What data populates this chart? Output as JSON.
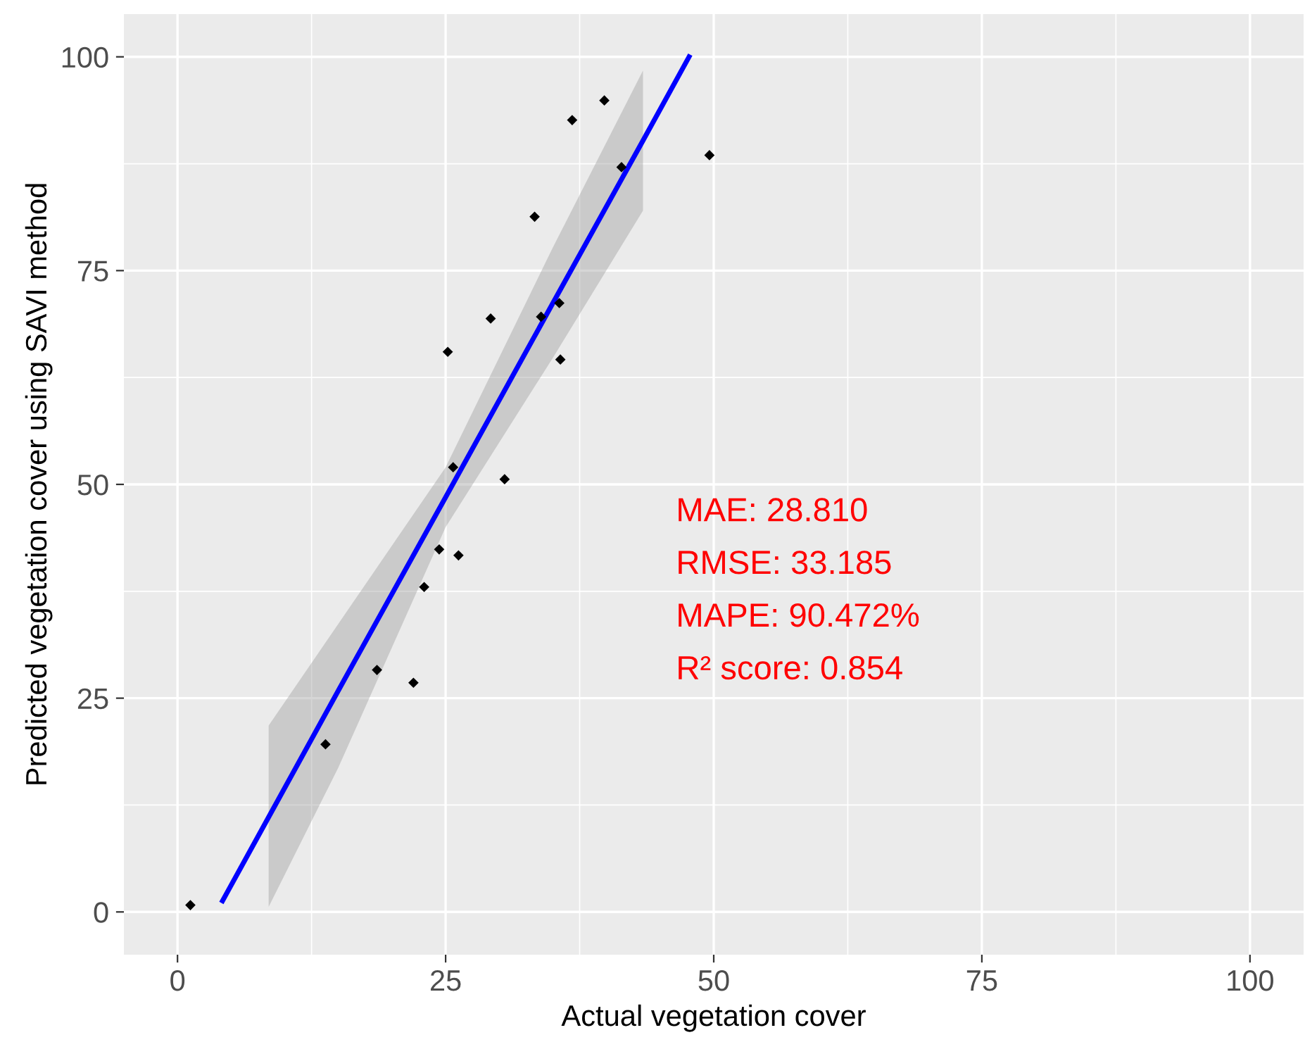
{
  "chart_data": {
    "type": "scatter",
    "xlabel": "Actual vegetation cover",
    "ylabel": "Predicted vegetation cover using SAVI method",
    "xlim": [
      -5,
      105
    ],
    "ylim": [
      -5,
      105
    ],
    "xticks": [
      0,
      25,
      50,
      75,
      100
    ],
    "yticks": [
      0,
      25,
      50,
      75,
      100
    ],
    "grid": true,
    "series": [
      {
        "color": "#000000",
        "marker": "diamond",
        "x": [
          1.2,
          13.8,
          18.6,
          22.0,
          23.0,
          24.4,
          25.2,
          25.7,
          26.2,
          29.2,
          30.5,
          33.3,
          33.9,
          35.6,
          35.7,
          36.8,
          39.8,
          41.4,
          49.6
        ],
        "values": [
          0.8,
          19.6,
          28.3,
          26.8,
          38.0,
          42.4,
          65.5,
          52.0,
          41.7,
          69.4,
          50.6,
          81.3,
          69.6,
          71.2,
          64.6,
          92.6,
          94.9,
          87.1,
          88.5
        ]
      },
      {
        "type": "line",
        "color": "#0000ff",
        "marker": "none",
        "x": [
          4.2,
          8.5,
          15,
          25,
          35,
          43.4,
          47.7
        ],
        "values": [
          1.3,
          11.1,
          25.9,
          48.5,
          71.2,
          90.2,
          100
        ],
        "lower": [
          null,
          0.6,
          16.9,
          45,
          64.8,
          82.0,
          null
        ],
        "upper": [
          null,
          21.8,
          33.7,
          52,
          77.7,
          98.4,
          null
        ]
      }
    ],
    "annotations": [
      "MAE: 28.810",
      "RMSE: 33.185",
      "MAPE: 90.472%",
      "R² score: 0.854"
    ]
  }
}
